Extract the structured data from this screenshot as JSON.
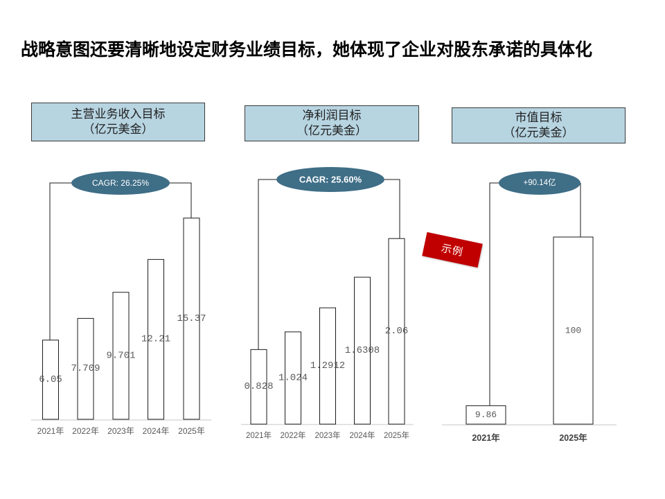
{
  "slide": {
    "title": "战略意图还要清晰地设定财务业绩目标，她体现了企业对股东承诺的具体化",
    "stamp": "示例"
  },
  "colors": {
    "background": "#FFFFFF",
    "header_fill": "#B7D4E1",
    "header_border": "#3A3A3A",
    "badge_fill": "#3F6E87",
    "badge_text": "#FFFFFF",
    "bar_fill": "#FFFFFF",
    "bar_stroke": "#1A1A1A",
    "bracket": "#1A1A1A",
    "axis": "#D9D9D9",
    "value_text": "#595959",
    "category_text": "#595959",
    "stamp_fill": "#C00000",
    "stamp_text": "#FFFFFF"
  },
  "chart_data": [
    {
      "type": "bar",
      "title": "主营业务收入目标",
      "subtitle": "（亿元美金）",
      "annotation": "CAGR: 26.25%",
      "categories": [
        "2021年",
        "2022年",
        "2023年",
        "2024年",
        "2025年"
      ],
      "values": [
        6.05,
        7.709,
        9.701,
        12.21,
        15.37
      ],
      "ylim": [
        0,
        18
      ],
      "grid": false,
      "legend": "none"
    },
    {
      "type": "bar",
      "title": "净利润目标",
      "subtitle": "（亿元美金）",
      "annotation": "CAGR: 25.60%",
      "categories": [
        "2021年",
        "2022年",
        "2023年",
        "2024年",
        "2025年"
      ],
      "values": [
        0.828,
        1.024,
        1.2912,
        1.6308,
        2.06
      ],
      "ylim": [
        0,
        2.6
      ],
      "grid": false,
      "legend": "none"
    },
    {
      "type": "bar",
      "title": "市值目标",
      "subtitle": "（亿元美金）",
      "annotation": "+90.14亿",
      "categories": [
        "2021年",
        "2025年"
      ],
      "values": [
        9.86,
        100
      ],
      "ylim": [
        0,
        125
      ],
      "grid": false,
      "legend": "none"
    }
  ]
}
